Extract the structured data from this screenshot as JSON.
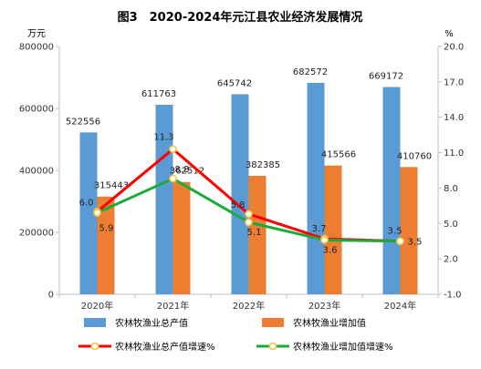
{
  "chart_data": {
    "type": "bar",
    "title": "图3　2020-2024年元江县农业经济发展情况",
    "y_left_unit": "万元",
    "y_right_unit": "%",
    "categories": [
      "2020年",
      "2021年",
      "2022年",
      "2023年",
      "2024年"
    ],
    "y_left": {
      "min": 0,
      "max": 800000,
      "ticks": [
        "0",
        "200000",
        "400000",
        "600000",
        "800000"
      ]
    },
    "y_right": {
      "min": -1.0,
      "max": 20.0,
      "ticks": [
        "-1.0",
        "2.0",
        "5.0",
        "8.0",
        "11.0",
        "14.0",
        "17.0",
        "20.0"
      ]
    },
    "grid": false,
    "legend_position": "bottom",
    "bar_series": [
      {
        "name": "农林牧渔业总产值",
        "color": "#5b9bd5",
        "values": [
          522556,
          611763,
          645742,
          682572,
          669172
        ],
        "labels": [
          "522556",
          "611763",
          "645742",
          "682572",
          "669172"
        ]
      },
      {
        "name": "农林牧渔业增加值",
        "color": "#ed7d31",
        "values": [
          315443,
          362512,
          382385,
          415566,
          410760
        ],
        "labels": [
          "315443",
          "362512",
          "382385",
          "415566",
          "410760"
        ]
      }
    ],
    "line_series": [
      {
        "name": "农林牧渔业总产值增速%",
        "color": "#ff0000",
        "values": [
          6.0,
          11.3,
          5.8,
          3.7,
          3.5
        ],
        "labels": [
          "6.0",
          "11.3",
          "5.8",
          "3.7",
          "3.5"
        ]
      },
      {
        "name": "农林牧渔业增加值增速%",
        "color": "#1aab3c",
        "values": [
          5.9,
          8.8,
          5.1,
          3.6,
          3.5
        ],
        "labels": [
          "5.9",
          "8.8",
          "5.1",
          "3.6",
          "3.5"
        ]
      }
    ],
    "marker_color": "#f5c242"
  }
}
